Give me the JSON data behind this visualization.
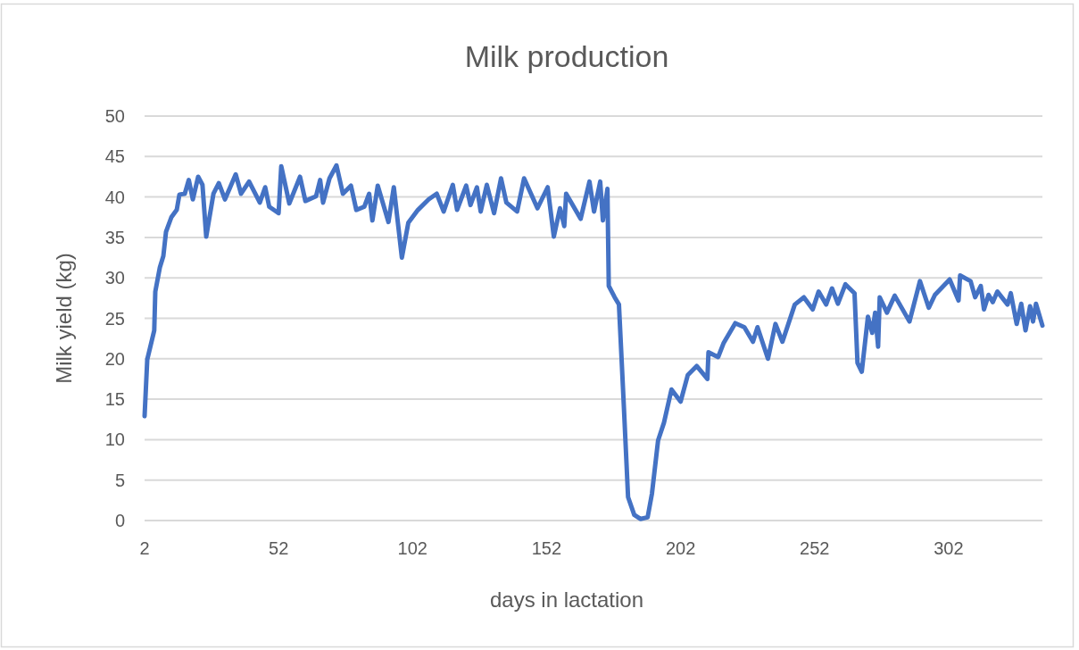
{
  "chart_data": {
    "type": "line",
    "title": "Milk production",
    "xlabel": "days in lactation",
    "ylabel": "Milk yield (kg)",
    "x": [
      2,
      3,
      5.6,
      6,
      7.7,
      9,
      10,
      12,
      14,
      15,
      17,
      18.5,
      20,
      22,
      23.6,
      25,
      27.7,
      29.7,
      32,
      36,
      38,
      41,
      45,
      47,
      48.5,
      52,
      53,
      56,
      60,
      62,
      66,
      67.5,
      68.6,
      71,
      73.6,
      76,
      79,
      81,
      84,
      85.8,
      87,
      89,
      93,
      95,
      98,
      100.4,
      104,
      108,
      111,
      113.6,
      117,
      118.6,
      122,
      123.6,
      126,
      127.4,
      129.7,
      132.4,
      135,
      137,
      141,
      143.6,
      148.6,
      152.4,
      154.7,
      157,
      158.6,
      159.3,
      164.7,
      168,
      169.7,
      172,
      173,
      174.7,
      175.2,
      177.4,
      179,
      180.8,
      182.4,
      184.7,
      187,
      189.7,
      191.3,
      193.6,
      195.8,
      198.6,
      202,
      204.7,
      208,
      212,
      212.4,
      216,
      218,
      222.4,
      225.8,
      229,
      230.7,
      234.6,
      237.4,
      240,
      244.6,
      248,
      251.3,
      253.5,
      256.3,
      258.5,
      260.7,
      263.5,
      266.9,
      268,
      269.6,
      271.9,
      273.5,
      274.6,
      275.7,
      276.3,
      279,
      281.9,
      287.4,
      291.3,
      294.6,
      296.9,
      302.4,
      305.7,
      306.3,
      310.2,
      311.9,
      314,
      315.2,
      316.9,
      318.5,
      320.2,
      324,
      325.2,
      327.4,
      329.1,
      330.7,
      332.4,
      333.5,
      334.6,
      337
    ],
    "series": [
      {
        "color": "#4472c4",
        "values": [
          12.9,
          19.9,
          23.5,
          28.3,
          31.3,
          32.7,
          35.7,
          37.5,
          38.4,
          40.3,
          40.4,
          42.1,
          39.7,
          42.5,
          41.5,
          35.1,
          40.4,
          41.7,
          39.7,
          42.8,
          40.4,
          41.9,
          39.3,
          41.2,
          38.8,
          38.0,
          43.8,
          39.2,
          42.5,
          39.5,
          40.1,
          42.1,
          39.3,
          42.3,
          43.9,
          40.4,
          41.4,
          38.4,
          38.8,
          40.4,
          37.1,
          41.4,
          36.9,
          41.2,
          32.5,
          36.8,
          38.4,
          39.7,
          40.4,
          38.2,
          41.5,
          38.4,
          41.4,
          39.0,
          41.2,
          38.2,
          41.5,
          38.0,
          42.3,
          39.3,
          38.2,
          42.3,
          38.6,
          41.2,
          35.1,
          38.6,
          36.4,
          40.4,
          37.3,
          41.9,
          38.2,
          41.9,
          37.1,
          41.0,
          29.0,
          27.6,
          26.7,
          14.3,
          2.9,
          0.7,
          0.2,
          0.4,
          3.3,
          9.9,
          12.1,
          16.2,
          14.7,
          18.0,
          19.1,
          17.5,
          20.8,
          20.2,
          21.9,
          24.4,
          23.9,
          22.1,
          23.9,
          20.0,
          24.3,
          22.1,
          26.7,
          27.6,
          26.1,
          28.3,
          26.7,
          28.7,
          26.8,
          29.2,
          28.1,
          19.5,
          18.4,
          25.2,
          23.2,
          25.7,
          21.5,
          27.6,
          25.7,
          27.8,
          24.6,
          29.6,
          26.3,
          27.9,
          29.8,
          27.2,
          30.3,
          29.6,
          27.6,
          29.0,
          26.1,
          27.9,
          27.0,
          28.3,
          26.7,
          28.1,
          24.3,
          26.8,
          23.5,
          26.5,
          24.6,
          26.8,
          24.1
        ]
      }
    ],
    "xlim": [
      2,
      337
    ],
    "xticks": [
      2,
      52,
      102,
      152,
      202,
      252,
      302
    ],
    "ylim": [
      0,
      50
    ],
    "yticks": [
      0,
      5,
      10,
      15,
      20,
      25,
      30,
      35,
      40,
      45,
      50
    ],
    "grid": "y"
  }
}
